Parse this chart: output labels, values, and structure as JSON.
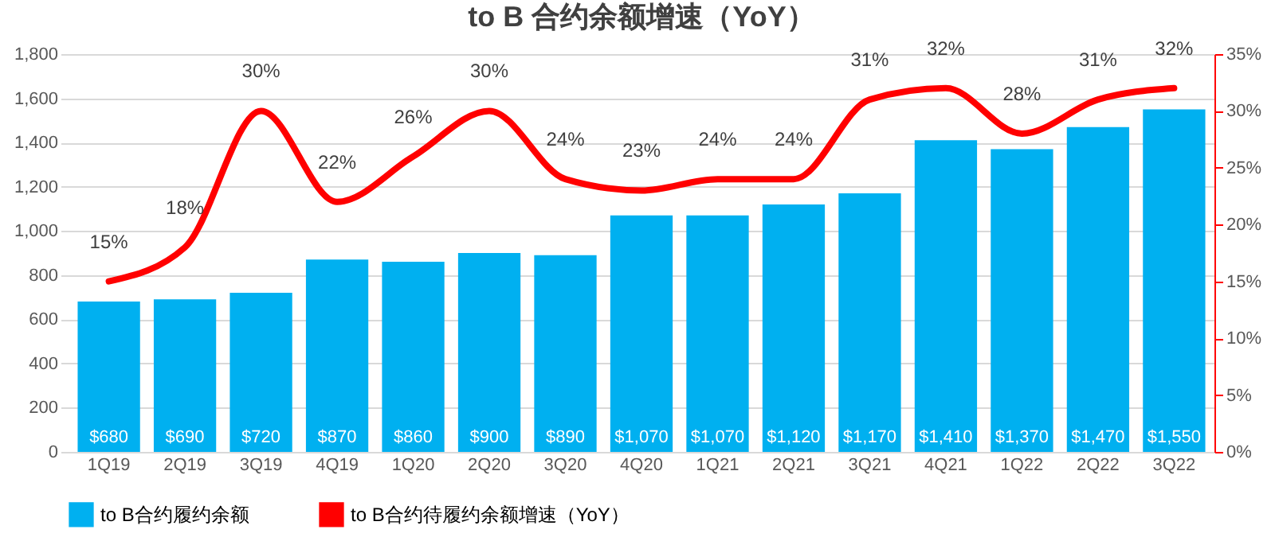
{
  "chart_data": {
    "type": "bar",
    "title": "to B 合约余额增速（YoY）",
    "categories": [
      "1Q19",
      "2Q19",
      "3Q19",
      "4Q19",
      "1Q20",
      "2Q20",
      "3Q20",
      "4Q20",
      "1Q21",
      "2Q21",
      "3Q21",
      "4Q21",
      "1Q22",
      "2Q22",
      "3Q22"
    ],
    "series": [
      {
        "name": "to B合约履约余额",
        "type": "bar",
        "color": "#00b0f0",
        "values": [
          680,
          690,
          720,
          870,
          860,
          900,
          890,
          1070,
          1070,
          1120,
          1170,
          1410,
          1370,
          1470,
          1550
        ],
        "value_labels": [
          "$680",
          "$690",
          "$720",
          "$870",
          "$860",
          "$900",
          "$890",
          "$1,070",
          "$1,070",
          "$1,120",
          "$1,170",
          "$1,410",
          "$1,370",
          "$1,470",
          "$1,550"
        ]
      },
      {
        "name": "to B合约待履约余额增速（YoY）",
        "type": "line",
        "axis": "y2",
        "color": "#ff0000",
        "values": [
          15,
          18,
          30,
          22,
          26,
          30,
          24,
          23,
          24,
          24,
          31,
          32,
          28,
          31,
          32
        ],
        "value_labels": [
          "15%",
          "18%",
          "30%",
          "22%",
          "26%",
          "30%",
          "24%",
          "23%",
          "24%",
          "24%",
          "31%",
          "32%",
          "28%",
          "31%",
          "32%"
        ]
      }
    ],
    "ylim": [
      0,
      1800
    ],
    "yticks": [
      0,
      200,
      400,
      600,
      800,
      {
        "value": 1000,
        "label": "1,000"
      },
      {
        "value": 1200,
        "label": "1,200"
      },
      {
        "value": 1400,
        "label": "1,400"
      },
      {
        "value": 1600,
        "label": "1,600"
      },
      {
        "value": 1800,
        "label": "1,800"
      }
    ],
    "y2lim": [
      0,
      35
    ],
    "y2ticks": [
      {
        "value": 0,
        "label": "0%"
      },
      {
        "value": 5,
        "label": "5%"
      },
      {
        "value": 10,
        "label": "10%"
      },
      {
        "value": 15,
        "label": "15%"
      },
      {
        "value": 20,
        "label": "20%"
      },
      {
        "value": 25,
        "label": "25%"
      },
      {
        "value": 30,
        "label": "30%"
      },
      {
        "value": 35,
        "label": "35%"
      }
    ],
    "grid": "y",
    "legend": "bottom",
    "marker": "none",
    "line_style": "solid"
  }
}
